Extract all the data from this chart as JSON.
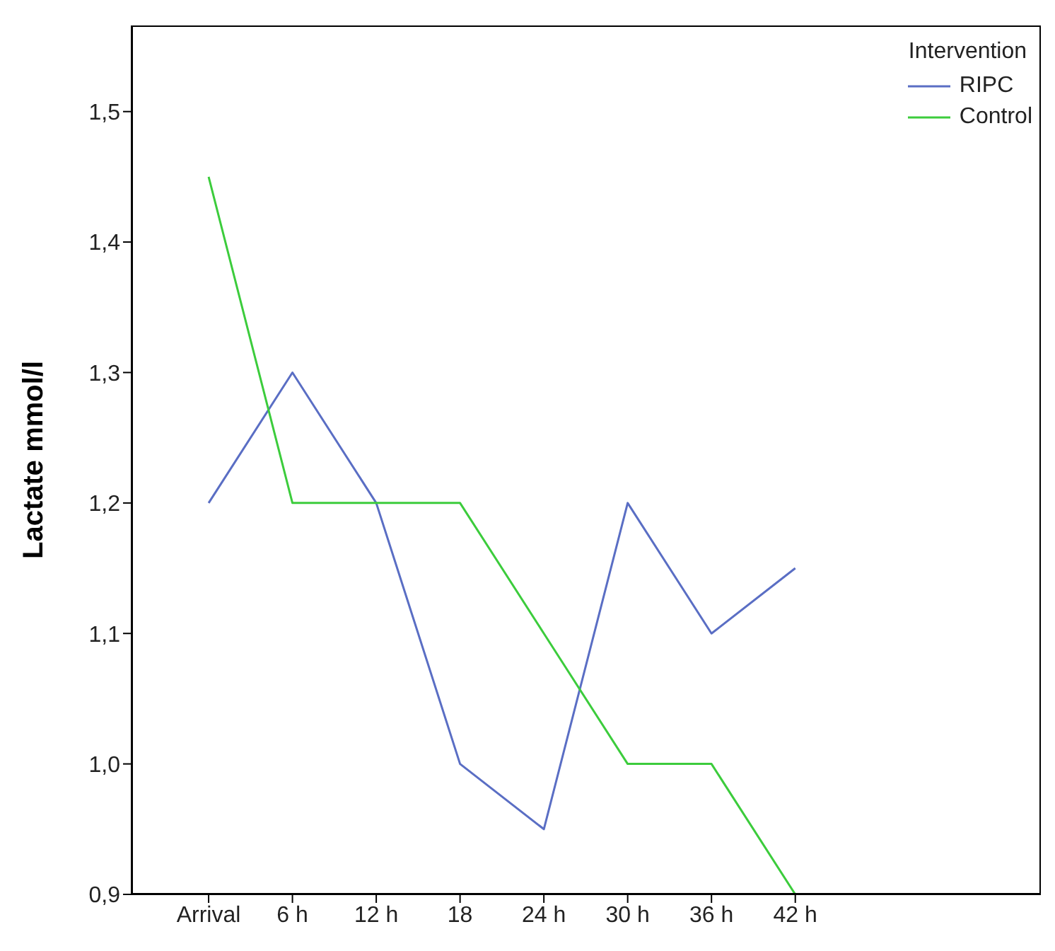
{
  "chart_data": {
    "type": "line",
    "ylabel": "Lactate  mmol/l",
    "legend_title": "Intervention",
    "legend": "top right",
    "grid": false,
    "marker": "none",
    "line_style": "solid",
    "categories": [
      "Arrival",
      "6 h",
      "12 h",
      "18",
      "24 h",
      "30 h",
      "36 h",
      "42 h"
    ],
    "ylim": [
      0.9,
      1.566
    ],
    "yticks": [
      {
        "value": 0.9,
        "label": "0,9"
      },
      {
        "value": 1.0,
        "label": "1,0"
      },
      {
        "value": 1.1,
        "label": "1,1"
      },
      {
        "value": 1.2,
        "label": "1,2"
      },
      {
        "value": 1.3,
        "label": "1,3"
      },
      {
        "value": 1.4,
        "label": "1,4"
      },
      {
        "value": 1.5,
        "label": "1,5"
      }
    ],
    "series": [
      {
        "name": "RIPC",
        "color": "#5a6ec4",
        "values": [
          1.2,
          1.3,
          1.2,
          1.0,
          0.95,
          1.2,
          1.1,
          1.15
        ]
      },
      {
        "name": "Control",
        "color": "#3ccc3c",
        "values": [
          1.45,
          1.2,
          1.2,
          1.2,
          1.1,
          1.0,
          1.0,
          0.9
        ]
      }
    ]
  }
}
